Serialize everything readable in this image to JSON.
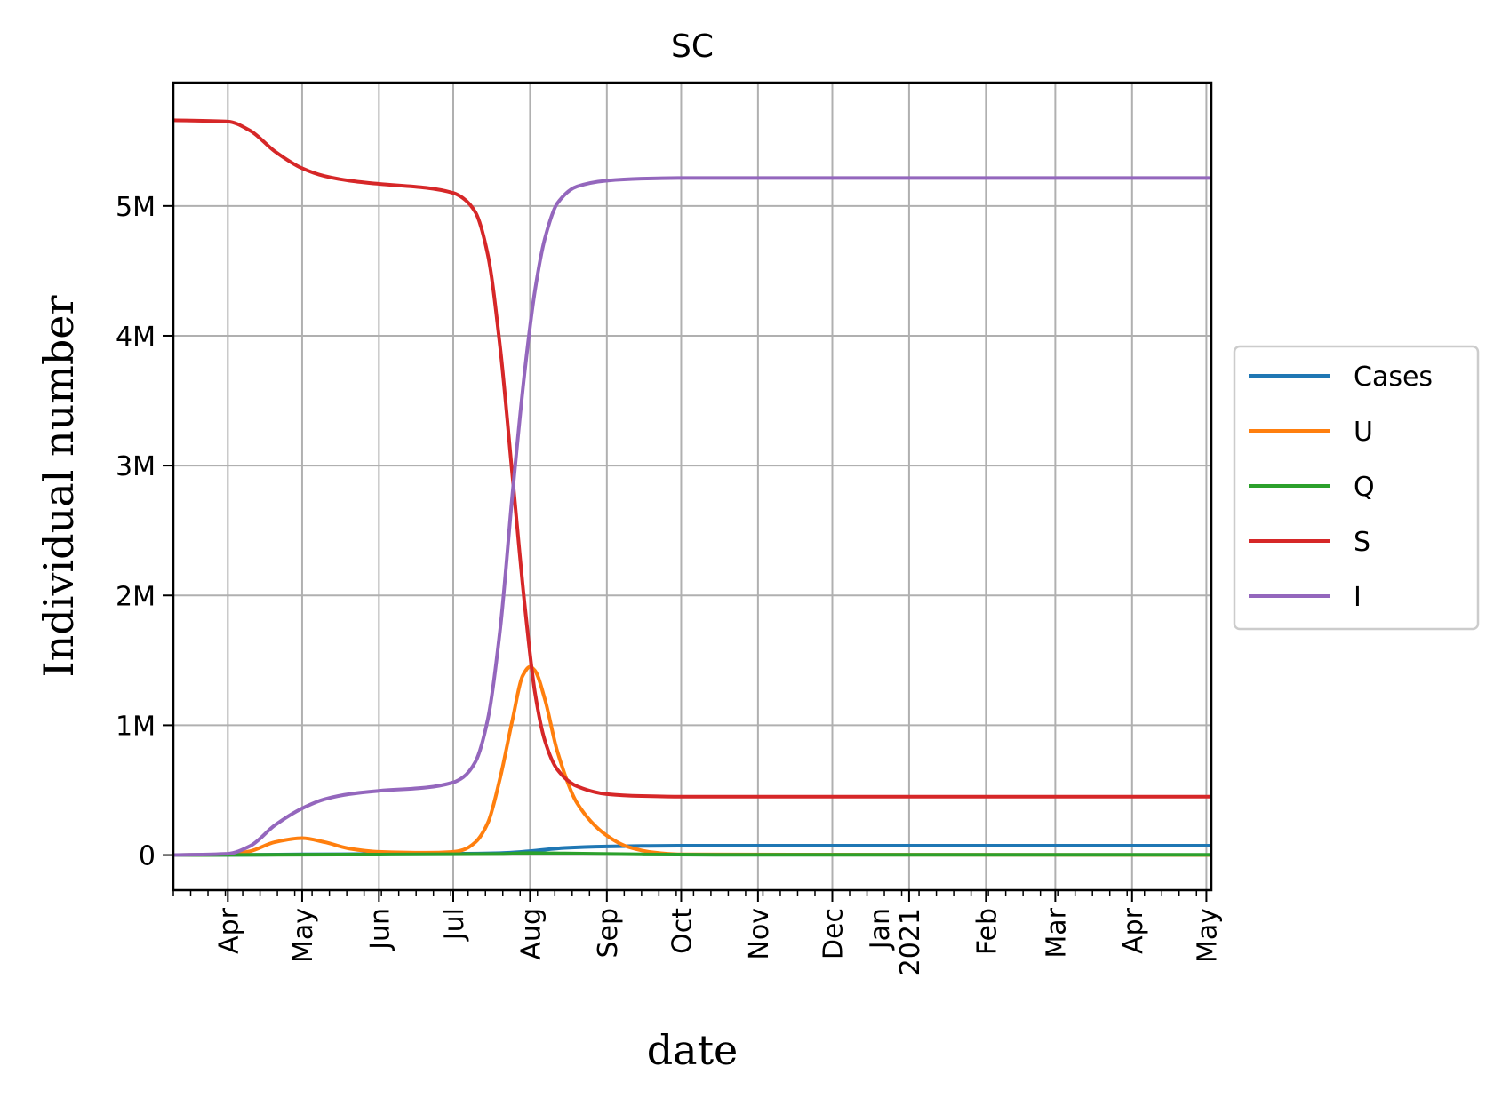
{
  "chart_data": {
    "type": "line",
    "title": "SC",
    "xlabel": "date",
    "ylabel": "Individual number",
    "xlim": [
      "2020-03-10",
      "2021-05-03"
    ],
    "ylim": [
      -270000,
      5950000
    ],
    "grid": true,
    "legend_position": "right",
    "x_ticks": [
      {
        "date": "2020-04-01",
        "label": "Apr"
      },
      {
        "date": "2020-05-01",
        "label": "May"
      },
      {
        "date": "2020-06-01",
        "label": "Jun"
      },
      {
        "date": "2020-07-01",
        "label": "Jul"
      },
      {
        "date": "2020-08-01",
        "label": "Aug"
      },
      {
        "date": "2020-09-01",
        "label": "Sep"
      },
      {
        "date": "2020-10-01",
        "label": "Oct"
      },
      {
        "date": "2020-11-01",
        "label": "Nov"
      },
      {
        "date": "2020-12-01",
        "label": "Dec"
      },
      {
        "date": "2021-01-01",
        "label": "Jan\n2021"
      },
      {
        "date": "2021-02-01",
        "label": "Feb"
      },
      {
        "date": "2021-03-01",
        "label": "Mar"
      },
      {
        "date": "2021-04-01",
        "label": "Apr"
      },
      {
        "date": "2021-05-01",
        "label": "May"
      }
    ],
    "y_ticks": [
      {
        "value": 0,
        "label": "0"
      },
      {
        "value": 1000000,
        "label": "1M"
      },
      {
        "value": 2000000,
        "label": "2M"
      },
      {
        "value": 3000000,
        "label": "3M"
      },
      {
        "value": 4000000,
        "label": "4M"
      },
      {
        "value": 5000000,
        "label": "5M"
      }
    ],
    "series": [
      {
        "name": "Cases",
        "color": "#1f77b4",
        "points": [
          [
            "2020-03-10",
            0
          ],
          [
            "2020-04-01",
            1000
          ],
          [
            "2020-05-01",
            5000
          ],
          [
            "2020-06-01",
            8000
          ],
          [
            "2020-07-01",
            10000
          ],
          [
            "2020-07-20",
            15000
          ],
          [
            "2020-08-01",
            30000
          ],
          [
            "2020-08-15",
            55000
          ],
          [
            "2020-09-01",
            66000
          ],
          [
            "2020-09-15",
            70000
          ],
          [
            "2020-10-01",
            72000
          ],
          [
            "2021-05-03",
            72000
          ]
        ]
      },
      {
        "name": "U",
        "color": "#ff7f0e",
        "points": [
          [
            "2020-03-10",
            0
          ],
          [
            "2020-04-01",
            5000
          ],
          [
            "2020-04-10",
            30000
          ],
          [
            "2020-04-20",
            100000
          ],
          [
            "2020-05-01",
            130000
          ],
          [
            "2020-05-10",
            100000
          ],
          [
            "2020-05-20",
            50000
          ],
          [
            "2020-06-01",
            25000
          ],
          [
            "2020-06-20",
            18000
          ],
          [
            "2020-07-01",
            25000
          ],
          [
            "2020-07-05",
            40000
          ],
          [
            "2020-07-10",
            100000
          ],
          [
            "2020-07-15",
            250000
          ],
          [
            "2020-07-20",
            600000
          ],
          [
            "2020-07-25",
            1050000
          ],
          [
            "2020-07-29",
            1380000
          ],
          [
            "2020-08-01",
            1450000
          ],
          [
            "2020-08-03",
            1420000
          ],
          [
            "2020-08-07",
            1200000
          ],
          [
            "2020-08-12",
            800000
          ],
          [
            "2020-08-20",
            400000
          ],
          [
            "2020-09-01",
            150000
          ],
          [
            "2020-09-10",
            60000
          ],
          [
            "2020-09-20",
            20000
          ],
          [
            "2020-10-01",
            5000
          ],
          [
            "2021-05-03",
            0
          ]
        ]
      },
      {
        "name": "Q",
        "color": "#2ca02c",
        "points": [
          [
            "2020-03-10",
            0
          ],
          [
            "2020-05-01",
            3000
          ],
          [
            "2020-06-01",
            4000
          ],
          [
            "2020-07-20",
            8000
          ],
          [
            "2020-08-01",
            15000
          ],
          [
            "2020-08-15",
            12000
          ],
          [
            "2020-09-15",
            5000
          ],
          [
            "2020-10-15",
            2000
          ],
          [
            "2021-05-03",
            2000
          ]
        ]
      },
      {
        "name": "S",
        "color": "#d62728",
        "points": [
          [
            "2020-03-10",
            5660000
          ],
          [
            "2020-04-01",
            5650000
          ],
          [
            "2020-04-10",
            5580000
          ],
          [
            "2020-04-20",
            5420000
          ],
          [
            "2020-05-01",
            5290000
          ],
          [
            "2020-05-10",
            5230000
          ],
          [
            "2020-05-20",
            5195000
          ],
          [
            "2020-06-01",
            5170000
          ],
          [
            "2020-06-20",
            5140000
          ],
          [
            "2020-07-01",
            5100000
          ],
          [
            "2020-07-05",
            5060000
          ],
          [
            "2020-07-10",
            4950000
          ],
          [
            "2020-07-15",
            4620000
          ],
          [
            "2020-07-20",
            3900000
          ],
          [
            "2020-07-25",
            2900000
          ],
          [
            "2020-07-30",
            1900000
          ],
          [
            "2020-08-03",
            1250000
          ],
          [
            "2020-08-07",
            880000
          ],
          [
            "2020-08-12",
            660000
          ],
          [
            "2020-08-20",
            530000
          ],
          [
            "2020-09-01",
            470000
          ],
          [
            "2020-09-15",
            455000
          ],
          [
            "2020-10-01",
            450000
          ],
          [
            "2021-05-03",
            450000
          ]
        ]
      },
      {
        "name": "I",
        "color": "#9467bd",
        "points": [
          [
            "2020-03-10",
            0
          ],
          [
            "2020-04-01",
            10000
          ],
          [
            "2020-04-10",
            70000
          ],
          [
            "2020-04-20",
            230000
          ],
          [
            "2020-05-01",
            360000
          ],
          [
            "2020-05-10",
            430000
          ],
          [
            "2020-05-20",
            470000
          ],
          [
            "2020-06-01",
            495000
          ],
          [
            "2020-06-20",
            520000
          ],
          [
            "2020-07-01",
            560000
          ],
          [
            "2020-07-05",
            600000
          ],
          [
            "2020-07-10",
            720000
          ],
          [
            "2020-07-15",
            1050000
          ],
          [
            "2020-07-20",
            1750000
          ],
          [
            "2020-07-25",
            2800000
          ],
          [
            "2020-07-30",
            3750000
          ],
          [
            "2020-08-03",
            4350000
          ],
          [
            "2020-08-07",
            4750000
          ],
          [
            "2020-08-12",
            5020000
          ],
          [
            "2020-08-20",
            5150000
          ],
          [
            "2020-09-01",
            5195000
          ],
          [
            "2020-09-15",
            5210000
          ],
          [
            "2020-10-01",
            5215000
          ],
          [
            "2021-05-03",
            5215000
          ]
        ]
      }
    ]
  }
}
